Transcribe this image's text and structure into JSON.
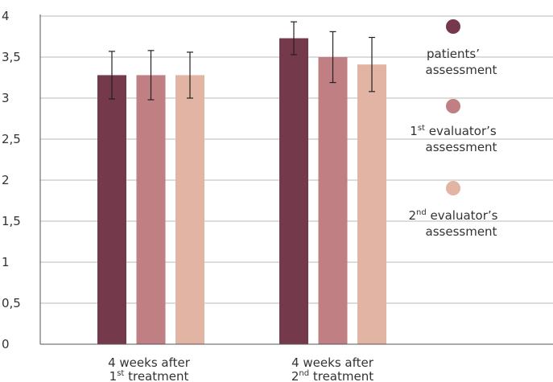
{
  "chart_data": {
    "type": "bar",
    "categories": [
      {
        "line1": "4 weeks after",
        "sup_pre": "1",
        "sup": "st",
        "rest": " treatment"
      },
      {
        "line1": "4 weeks after",
        "sup_pre": "2",
        "sup": "nd",
        "rest": " treatment"
      }
    ],
    "series": [
      {
        "name_parts": {
          "pre": "",
          "sup": "",
          "line1": "patients’",
          "line2": "assessment"
        },
        "color": "#74394a",
        "values": [
          3.28,
          3.73
        ],
        "errors": [
          0.29,
          0.2
        ]
      },
      {
        "name_parts": {
          "pre": "1",
          "sup": "st",
          "line1": " evaluator’s",
          "line2": "assessment"
        },
        "color": "#c07f82",
        "values": [
          3.28,
          3.5
        ],
        "errors": [
          0.3,
          0.31
        ]
      },
      {
        "name_parts": {
          "pre": "2",
          "sup": "nd",
          "line1": " evaluator’s",
          "line2": "assessment"
        },
        "color": "#e1b4a3",
        "values": [
          3.28,
          3.41
        ],
        "errors": [
          0.28,
          0.33
        ]
      }
    ],
    "yticks": [
      "0",
      "0,5",
      "1",
      "1,5",
      "2",
      "2,5",
      "3",
      "3,5",
      "4"
    ],
    "ylim": [
      0,
      4
    ],
    "grid": true,
    "legend_position": "right"
  }
}
